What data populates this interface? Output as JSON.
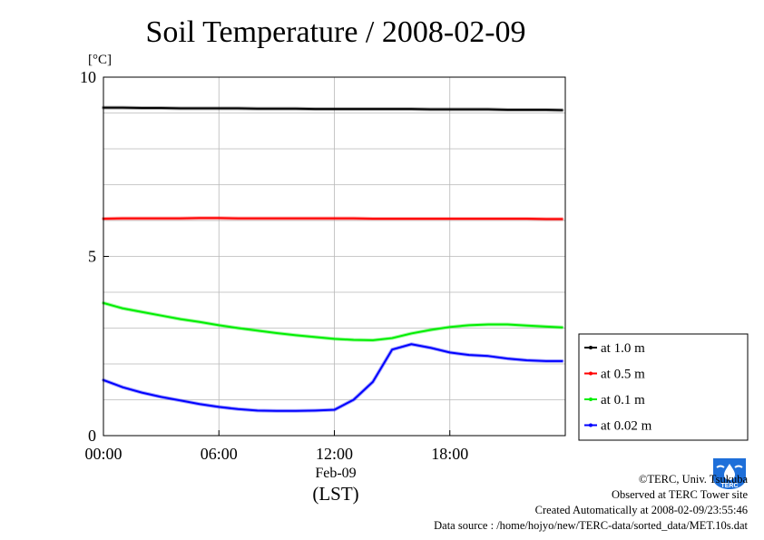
{
  "chart_data": {
    "type": "line",
    "title": "Soil Temperature / 2008-02-09",
    "ylabel": "[°C]",
    "xlabel": "(LST)",
    "date_label": "Feb-09",
    "ylim": [
      0,
      10
    ],
    "xlim": [
      "2008-02-09 00:00",
      "2008-02-10 00:00"
    ],
    "yticks": [
      "0",
      "5",
      "10"
    ],
    "xticks": [
      "00:00",
      "06:00",
      "12:00",
      "18:00"
    ],
    "grid": true,
    "legend_position": "right",
    "x": [
      "00:00",
      "01:00",
      "02:00",
      "03:00",
      "04:00",
      "05:00",
      "06:00",
      "07:00",
      "08:00",
      "09:00",
      "10:00",
      "11:00",
      "12:00",
      "13:00",
      "14:00",
      "15:00",
      "16:00",
      "17:00",
      "18:00",
      "19:00",
      "20:00",
      "21:00",
      "22:00",
      "23:00",
      "23:50"
    ],
    "series": [
      {
        "name": "at 1.0 m",
        "color": "#000000",
        "values": [
          9.15,
          9.15,
          9.14,
          9.14,
          9.13,
          9.13,
          9.13,
          9.13,
          9.12,
          9.12,
          9.12,
          9.11,
          9.11,
          9.11,
          9.11,
          9.11,
          9.11,
          9.1,
          9.1,
          9.1,
          9.1,
          9.09,
          9.09,
          9.09,
          9.08
        ]
      },
      {
        "name": "at 0.5 m",
        "color": "#ff0000",
        "values": [
          6.05,
          6.06,
          6.06,
          6.06,
          6.06,
          6.07,
          6.07,
          6.06,
          6.06,
          6.06,
          6.06,
          6.06,
          6.06,
          6.06,
          6.05,
          6.05,
          6.05,
          6.05,
          6.05,
          6.05,
          6.05,
          6.05,
          6.05,
          6.04,
          6.04
        ]
      },
      {
        "name": "at 0.1 m",
        "color": "#00ee00",
        "values": [
          3.7,
          3.55,
          3.45,
          3.35,
          3.25,
          3.17,
          3.08,
          3.0,
          2.93,
          2.86,
          2.8,
          2.75,
          2.7,
          2.67,
          2.66,
          2.72,
          2.85,
          2.95,
          3.03,
          3.08,
          3.1,
          3.1,
          3.07,
          3.04,
          3.02
        ]
      },
      {
        "name": "at 0.02 m",
        "color": "#0000ff",
        "values": [
          1.55,
          1.35,
          1.2,
          1.08,
          0.98,
          0.88,
          0.8,
          0.74,
          0.7,
          0.69,
          0.69,
          0.7,
          0.72,
          1.0,
          1.5,
          2.4,
          2.55,
          2.45,
          2.32,
          2.25,
          2.22,
          2.15,
          2.1,
          2.08,
          2.08
        ]
      }
    ]
  },
  "credits": {
    "copyright": "©TERC, Univ. Tsukuba",
    "observed": "Observed at TERC Tower site",
    "created": "Created Automatically at 2008-02-09/23:55:46",
    "source": "Data source : /home/hojyo/new/TERC-data/sorted_data/MET.10s.dat"
  },
  "logo": {
    "icon": "terc-logo-icon",
    "text": "TERC",
    "color": "#1e6fd9"
  }
}
